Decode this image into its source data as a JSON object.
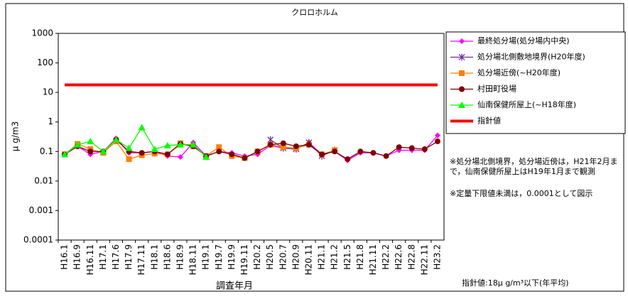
{
  "chart_data": {
    "type": "line",
    "title": "クロロホルム",
    "x_label": "調査年月",
    "y_label": "μ g/m3",
    "log_scale": true,
    "ylim": [
      0.0001,
      1000
    ],
    "yticks": [
      0.0001,
      0.001,
      0.01,
      0.1,
      1,
      10,
      100,
      1000
    ],
    "categories": [
      "H16.1",
      "H16.9",
      "H16.11",
      "H17.1",
      "H17.6",
      "H17.9",
      "H17.11",
      "H18.1",
      "H18.6",
      "H18.9",
      "H18.11",
      "H19.1",
      "H19.7",
      "H19.9",
      "H19.11",
      "H20.2",
      "H20.5",
      "H20.7",
      "H20.9",
      "H20.11",
      "H21.1",
      "H21.2",
      "H21.5",
      "H21.8",
      "H21.11",
      "H22.2",
      "H22.6",
      "H22.8",
      "H22.11",
      "H23.2"
    ],
    "series": [
      {
        "name": "最終処分場(処分場内中央)",
        "color": "#ff00ff",
        "marker": "diamond",
        "values": [
          0.08,
          0.15,
          0.08,
          0.1,
          0.28,
          0.09,
          0.09,
          0.1,
          0.07,
          0.065,
          0.2,
          0.07,
          0.1,
          0.09,
          0.07,
          0.08,
          0.16,
          0.13,
          0.12,
          0.2,
          0.08,
          0.1,
          0.05,
          0.09,
          0.09,
          0.07,
          0.11,
          0.11,
          0.11,
          0.35
        ]
      },
      {
        "name": "処分場北側敷地境界(H20年度)",
        "color": "#7030a0",
        "marker": "asterisk",
        "values": [
          null,
          null,
          null,
          null,
          null,
          null,
          null,
          null,
          null,
          null,
          null,
          null,
          null,
          null,
          null,
          null,
          0.25,
          0.13,
          0.12,
          0.2,
          0.07,
          0.11,
          null,
          null,
          null,
          null,
          null,
          null,
          null,
          null
        ]
      },
      {
        "name": "処分場近傍(~H20年度)",
        "color": "#ff8000",
        "marker": "square",
        "values": [
          0.08,
          0.18,
          0.12,
          0.09,
          0.22,
          0.055,
          0.075,
          0.085,
          0.08,
          0.19,
          0.15,
          0.07,
          0.14,
          0.07,
          0.06,
          0.1,
          0.17,
          0.14,
          0.13,
          0.17,
          0.08,
          0.11,
          null,
          null,
          null,
          null,
          null,
          null,
          null,
          null
        ]
      },
      {
        "name": "村田町役場",
        "color": "#800000",
        "marker": "circle",
        "values": [
          0.08,
          0.15,
          0.1,
          0.1,
          0.25,
          0.1,
          0.09,
          0.1,
          0.08,
          0.18,
          0.15,
          0.07,
          0.1,
          0.08,
          0.06,
          0.1,
          0.17,
          0.19,
          0.15,
          0.17,
          0.08,
          0.1,
          0.055,
          0.1,
          0.09,
          0.07,
          0.14,
          0.13,
          0.12,
          0.22
        ]
      },
      {
        "name": "仙南保健所屋上(~H18年度)",
        "color": "#00ff00",
        "marker": "triangle",
        "values": [
          0.08,
          0.17,
          0.22,
          0.1,
          0.25,
          0.13,
          0.65,
          0.12,
          0.16,
          0.17,
          0.17,
          0.065,
          null,
          null,
          null,
          null,
          null,
          null,
          null,
          null,
          null,
          null,
          null,
          null,
          null,
          null,
          null,
          null,
          null,
          null
        ]
      },
      {
        "name": "指針値",
        "color": "#ff0000",
        "marker": "none",
        "values": [
          18,
          18,
          18,
          18,
          18,
          18,
          18,
          18,
          18,
          18,
          18,
          18,
          18,
          18,
          18,
          18,
          18,
          18,
          18,
          18,
          18,
          18,
          18,
          18,
          18,
          18,
          18,
          18,
          18,
          18
        ]
      }
    ],
    "annotations": [
      "※処分場北側境界，処分場近傍は，H21年2月まで，仙南保健所屋上はH19年1月まで観測",
      "※定量下限値未満は，0.0001として図示",
      "指針値:18μ g/m³以下(年平均)"
    ]
  }
}
